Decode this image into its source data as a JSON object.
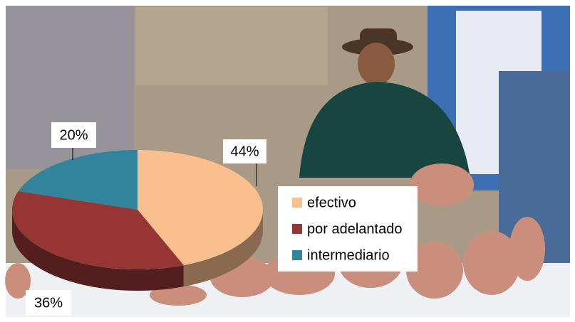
{
  "chart_data": {
    "type": "pie3d",
    "categories": [
      "efectivo",
      "por adelantado",
      "intermediario"
    ],
    "values": [
      44,
      36,
      20
    ],
    "value_labels": [
      "44%",
      "36%",
      "20%"
    ],
    "colors": [
      "#f9bf8f",
      "#963634",
      "#31849b"
    ],
    "legend": "right"
  }
}
